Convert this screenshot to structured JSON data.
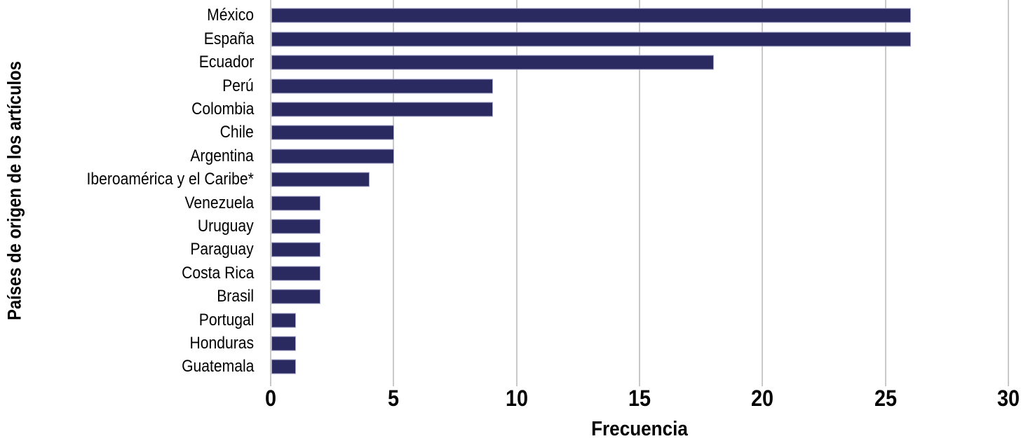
{
  "chart_data": {
    "type": "bar",
    "orientation": "horizontal",
    "title": "",
    "xlabel": "Frecuencia",
    "ylabel": "Países de origen de los artículos",
    "categories": [
      "México",
      "España",
      "Ecuador",
      "Perú",
      "Colombia",
      "Chile",
      "Argentina",
      "Iberoamérica y el Caribe*",
      "Venezuela",
      "Uruguay",
      "Paraguay",
      "Costa Rica",
      "Brasil",
      "Portugal",
      "Honduras",
      "Guatemala"
    ],
    "values": [
      26,
      26,
      18,
      9,
      9,
      5,
      5,
      4,
      2,
      2,
      2,
      2,
      2,
      1,
      1,
      1
    ],
    "xlim": [
      0,
      30
    ],
    "xticks": [
      0,
      5,
      10,
      15,
      20,
      25,
      30
    ],
    "grid": true,
    "legend": false,
    "colors": {
      "bar_fill": "#2b2a60",
      "bar_border": "#a5a4cc",
      "gridline": "#c9c9c9",
      "text": "#000000",
      "background": "#ffffff"
    }
  }
}
